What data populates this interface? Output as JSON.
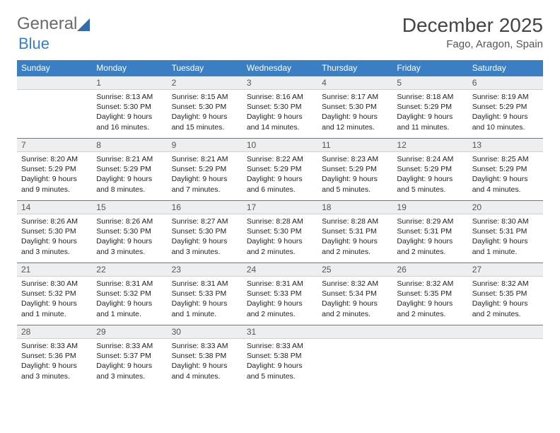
{
  "brand": {
    "word1": "General",
    "word2": "Blue",
    "sail_color": "#2f6fb0"
  },
  "title": "December 2025",
  "location": "Fago, Aragon, Spain",
  "colors": {
    "header_bg": "#3a7fc4",
    "header_text": "#ffffff",
    "daybar_bg": "#eceeef",
    "daybar_border_top": "#5b7fa0"
  },
  "weekdays": [
    "Sunday",
    "Monday",
    "Tuesday",
    "Wednesday",
    "Thursday",
    "Friday",
    "Saturday"
  ],
  "weeks": [
    [
      null,
      {
        "n": "1",
        "sr": "Sunrise: 8:13 AM",
        "ss": "Sunset: 5:30 PM",
        "d1": "Daylight: 9 hours",
        "d2": "and 16 minutes."
      },
      {
        "n": "2",
        "sr": "Sunrise: 8:15 AM",
        "ss": "Sunset: 5:30 PM",
        "d1": "Daylight: 9 hours",
        "d2": "and 15 minutes."
      },
      {
        "n": "3",
        "sr": "Sunrise: 8:16 AM",
        "ss": "Sunset: 5:30 PM",
        "d1": "Daylight: 9 hours",
        "d2": "and 14 minutes."
      },
      {
        "n": "4",
        "sr": "Sunrise: 8:17 AM",
        "ss": "Sunset: 5:30 PM",
        "d1": "Daylight: 9 hours",
        "d2": "and 12 minutes."
      },
      {
        "n": "5",
        "sr": "Sunrise: 8:18 AM",
        "ss": "Sunset: 5:29 PM",
        "d1": "Daylight: 9 hours",
        "d2": "and 11 minutes."
      },
      {
        "n": "6",
        "sr": "Sunrise: 8:19 AM",
        "ss": "Sunset: 5:29 PM",
        "d1": "Daylight: 9 hours",
        "d2": "and 10 minutes."
      }
    ],
    [
      {
        "n": "7",
        "sr": "Sunrise: 8:20 AM",
        "ss": "Sunset: 5:29 PM",
        "d1": "Daylight: 9 hours",
        "d2": "and 9 minutes."
      },
      {
        "n": "8",
        "sr": "Sunrise: 8:21 AM",
        "ss": "Sunset: 5:29 PM",
        "d1": "Daylight: 9 hours",
        "d2": "and 8 minutes."
      },
      {
        "n": "9",
        "sr": "Sunrise: 8:21 AM",
        "ss": "Sunset: 5:29 PM",
        "d1": "Daylight: 9 hours",
        "d2": "and 7 minutes."
      },
      {
        "n": "10",
        "sr": "Sunrise: 8:22 AM",
        "ss": "Sunset: 5:29 PM",
        "d1": "Daylight: 9 hours",
        "d2": "and 6 minutes."
      },
      {
        "n": "11",
        "sr": "Sunrise: 8:23 AM",
        "ss": "Sunset: 5:29 PM",
        "d1": "Daylight: 9 hours",
        "d2": "and 5 minutes."
      },
      {
        "n": "12",
        "sr": "Sunrise: 8:24 AM",
        "ss": "Sunset: 5:29 PM",
        "d1": "Daylight: 9 hours",
        "d2": "and 5 minutes."
      },
      {
        "n": "13",
        "sr": "Sunrise: 8:25 AM",
        "ss": "Sunset: 5:29 PM",
        "d1": "Daylight: 9 hours",
        "d2": "and 4 minutes."
      }
    ],
    [
      {
        "n": "14",
        "sr": "Sunrise: 8:26 AM",
        "ss": "Sunset: 5:30 PM",
        "d1": "Daylight: 9 hours",
        "d2": "and 3 minutes."
      },
      {
        "n": "15",
        "sr": "Sunrise: 8:26 AM",
        "ss": "Sunset: 5:30 PM",
        "d1": "Daylight: 9 hours",
        "d2": "and 3 minutes."
      },
      {
        "n": "16",
        "sr": "Sunrise: 8:27 AM",
        "ss": "Sunset: 5:30 PM",
        "d1": "Daylight: 9 hours",
        "d2": "and 3 minutes."
      },
      {
        "n": "17",
        "sr": "Sunrise: 8:28 AM",
        "ss": "Sunset: 5:30 PM",
        "d1": "Daylight: 9 hours",
        "d2": "and 2 minutes."
      },
      {
        "n": "18",
        "sr": "Sunrise: 8:28 AM",
        "ss": "Sunset: 5:31 PM",
        "d1": "Daylight: 9 hours",
        "d2": "and 2 minutes."
      },
      {
        "n": "19",
        "sr": "Sunrise: 8:29 AM",
        "ss": "Sunset: 5:31 PM",
        "d1": "Daylight: 9 hours",
        "d2": "and 2 minutes."
      },
      {
        "n": "20",
        "sr": "Sunrise: 8:30 AM",
        "ss": "Sunset: 5:31 PM",
        "d1": "Daylight: 9 hours",
        "d2": "and 1 minute."
      }
    ],
    [
      {
        "n": "21",
        "sr": "Sunrise: 8:30 AM",
        "ss": "Sunset: 5:32 PM",
        "d1": "Daylight: 9 hours",
        "d2": "and 1 minute."
      },
      {
        "n": "22",
        "sr": "Sunrise: 8:31 AM",
        "ss": "Sunset: 5:32 PM",
        "d1": "Daylight: 9 hours",
        "d2": "and 1 minute."
      },
      {
        "n": "23",
        "sr": "Sunrise: 8:31 AM",
        "ss": "Sunset: 5:33 PM",
        "d1": "Daylight: 9 hours",
        "d2": "and 1 minute."
      },
      {
        "n": "24",
        "sr": "Sunrise: 8:31 AM",
        "ss": "Sunset: 5:33 PM",
        "d1": "Daylight: 9 hours",
        "d2": "and 2 minutes."
      },
      {
        "n": "25",
        "sr": "Sunrise: 8:32 AM",
        "ss": "Sunset: 5:34 PM",
        "d1": "Daylight: 9 hours",
        "d2": "and 2 minutes."
      },
      {
        "n": "26",
        "sr": "Sunrise: 8:32 AM",
        "ss": "Sunset: 5:35 PM",
        "d1": "Daylight: 9 hours",
        "d2": "and 2 minutes."
      },
      {
        "n": "27",
        "sr": "Sunrise: 8:32 AM",
        "ss": "Sunset: 5:35 PM",
        "d1": "Daylight: 9 hours",
        "d2": "and 2 minutes."
      }
    ],
    [
      {
        "n": "28",
        "sr": "Sunrise: 8:33 AM",
        "ss": "Sunset: 5:36 PM",
        "d1": "Daylight: 9 hours",
        "d2": "and 3 minutes."
      },
      {
        "n": "29",
        "sr": "Sunrise: 8:33 AM",
        "ss": "Sunset: 5:37 PM",
        "d1": "Daylight: 9 hours",
        "d2": "and 3 minutes."
      },
      {
        "n": "30",
        "sr": "Sunrise: 8:33 AM",
        "ss": "Sunset: 5:38 PM",
        "d1": "Daylight: 9 hours",
        "d2": "and 4 minutes."
      },
      {
        "n": "31",
        "sr": "Sunrise: 8:33 AM",
        "ss": "Sunset: 5:38 PM",
        "d1": "Daylight: 9 hours",
        "d2": "and 5 minutes."
      },
      null,
      null,
      null
    ]
  ]
}
